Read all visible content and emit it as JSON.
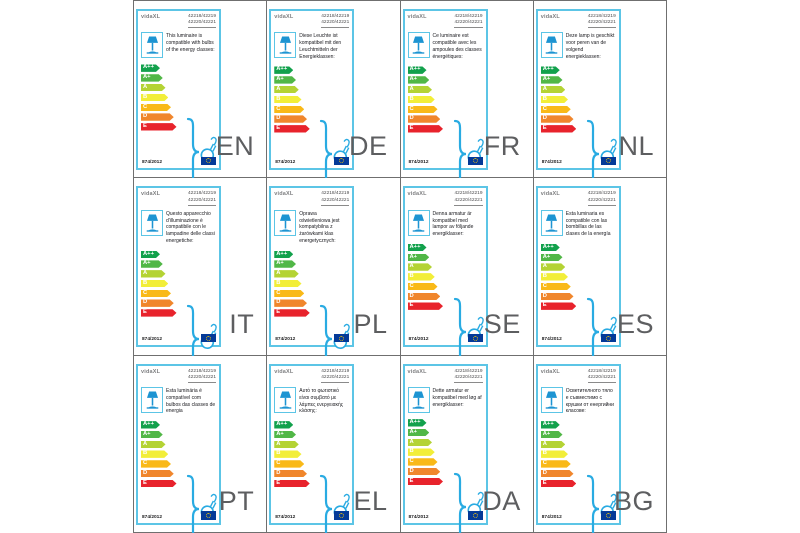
{
  "brand": "vidaXL",
  "model_numbers": "42218/42219\n42220/42221",
  "regulation_number": "874/2012",
  "icons": {
    "lamp": "table-lamp-icon",
    "bulb": "compatible-bulb-icon",
    "flag": "eu-flag-icon"
  },
  "colors": {
    "accent": "#29abe2",
    "card-border": "#5cc5e6",
    "grid-line": "#6f6f6f",
    "lang-color": "#5d5e60",
    "flag-blue": "#043a98",
    "flag-star": "#ffcc00"
  },
  "energy_classes": [
    {
      "label": "A++",
      "color": "#12a14c"
    },
    {
      "label": "A+",
      "color": "#51b747"
    },
    {
      "label": "A",
      "color": "#b4d334"
    },
    {
      "label": "B",
      "color": "#f2ee39"
    },
    {
      "label": "C",
      "color": "#f9b918"
    },
    {
      "label": "D",
      "color": "#f0862c"
    },
    {
      "label": "E",
      "color": "#e8232c"
    }
  ],
  "cards": [
    {
      "lang": "EN",
      "description": "This luminaire is compatible with bulbs of the energy classes:"
    },
    {
      "lang": "DE",
      "description": "Diese Leuchte ist kompatibel mit den Leuchtmitteln der Energieklassen:"
    },
    {
      "lang": "FR",
      "description": "Ce luminaire est compatible avec les ampoules des classes énergétiques:"
    },
    {
      "lang": "NL",
      "description": "Deze lamp is geschikt voor peren van de volgend energieklassen:"
    },
    {
      "lang": "IT",
      "description": "Questo apparecchio d'illuminazione è compatibile con le lampadine delle classi energetiche:"
    },
    {
      "lang": "PL",
      "description": "Oprawa oświetleniowa jest kompatybilna z żarówkami klas energetycznych:"
    },
    {
      "lang": "SE",
      "description": "Denna armatur är kompatibel med lampor av följande energiklasser:"
    },
    {
      "lang": "ES",
      "description": "Esta luminaria es compatible con las bombillas de las clases de la energía"
    },
    {
      "lang": "PT",
      "description": "Esta luminária é compatível com bulbos das classes de energia"
    },
    {
      "lang": "EL",
      "description": "Αυτό το φωτιστικό είναι συμβατό με λάμπες ενεργειακής κλάσης:"
    },
    {
      "lang": "DA",
      "description": "Dette armatur er kompatibel med løg af energiklasser:"
    },
    {
      "lang": "BG",
      "description": "Осветителното тяло е съвместимо с крушки от енергийни класове:"
    }
  ]
}
